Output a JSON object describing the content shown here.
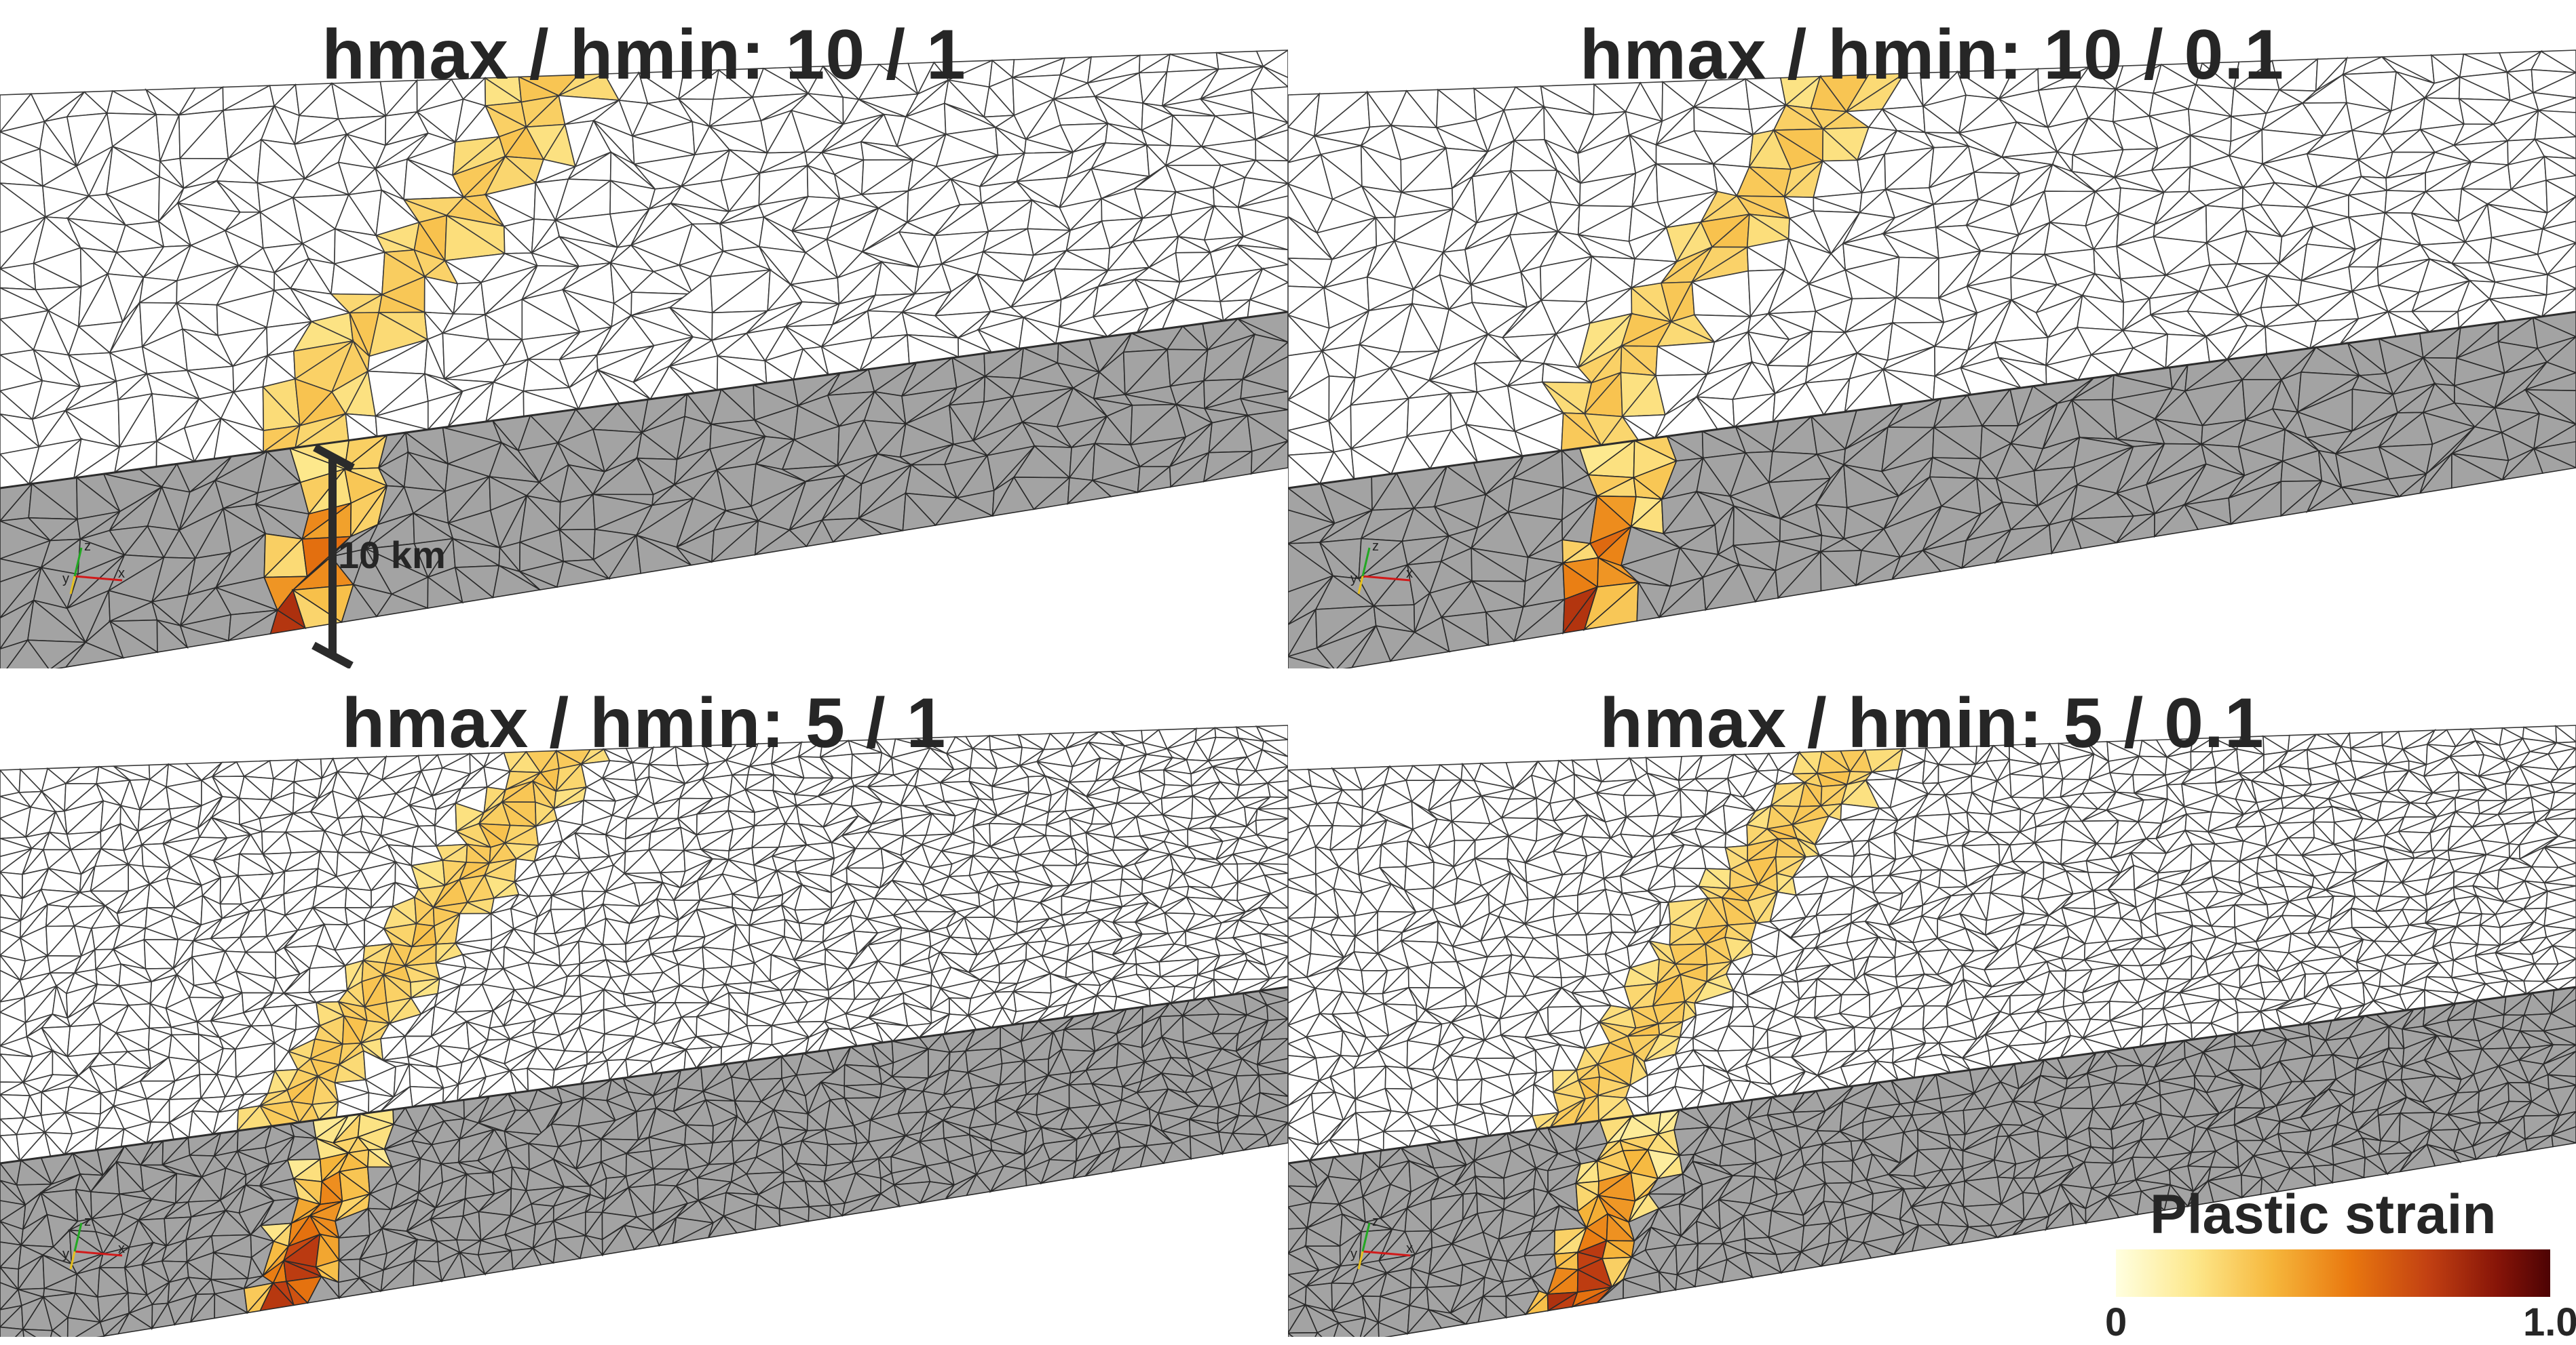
{
  "panels": [
    {
      "id": "p1",
      "title": "hmax / hmin: 10 / 1",
      "coarse": 10,
      "fine": 1
    },
    {
      "id": "p2",
      "title": "hmax / hmin: 10 / 0.1",
      "coarse": 10,
      "fine": 0.1
    },
    {
      "id": "p3",
      "title": "hmax / hmin: 5 / 1",
      "coarse": 5,
      "fine": 1
    },
    {
      "id": "p4",
      "title": "hmax / hmin: 5 / 0.1",
      "coarse": 5,
      "fine": 0.1
    }
  ],
  "scale_bar": {
    "label": "10 km"
  },
  "axes_triad": {
    "x": "x",
    "y": "y",
    "z": "z"
  },
  "colorbar": {
    "title": "Plastic strain",
    "min_label": "0",
    "max_label": "1.0",
    "colors": [
      "#ffffe0",
      "#fde88c",
      "#f6b73c",
      "#e9780f",
      "#c24012",
      "#861408",
      "#4d0304"
    ]
  },
  "colors": {
    "top_face": "#ffffff",
    "side_face": "#a3a3a3",
    "mesh_line": "#3a3a3a"
  }
}
